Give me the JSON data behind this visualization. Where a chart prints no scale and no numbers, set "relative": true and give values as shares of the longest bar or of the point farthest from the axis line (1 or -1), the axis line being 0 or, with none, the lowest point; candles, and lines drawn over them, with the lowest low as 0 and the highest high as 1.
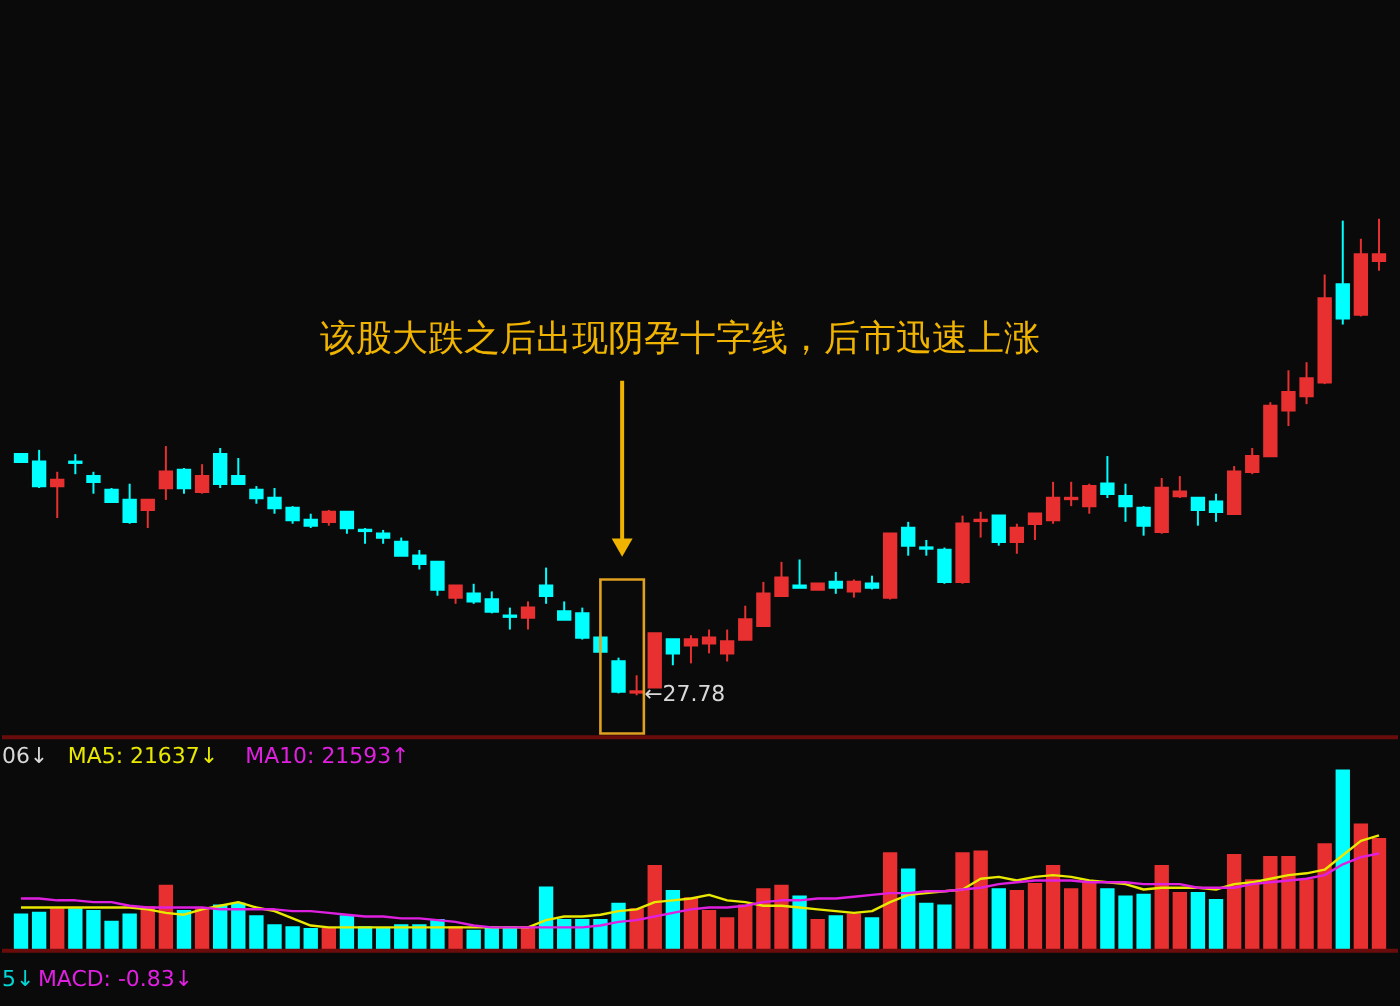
{
  "chart_data": [
    {
      "type": "candlestick",
      "relative": true,
      "categories": [
        null,
        null,
        null,
        null,
        null,
        null,
        null,
        null,
        null,
        null,
        null,
        null,
        null,
        null,
        null,
        null,
        null,
        null,
        null,
        null,
        null,
        null,
        null,
        null,
        null,
        null,
        null,
        null,
        null,
        null,
        null,
        null,
        null,
        null,
        null,
        null,
        null,
        null,
        null,
        null,
        null,
        null,
        null,
        null,
        null,
        null,
        null,
        null,
        null,
        null,
        null,
        null,
        null,
        null,
        null,
        null,
        null,
        null,
        null,
        null,
        null,
        null,
        null,
        null,
        null,
        null,
        null,
        null,
        null,
        null,
        null,
        null,
        null,
        null,
        null,
        null
      ],
      "ohlc": [
        [
          0.506,
          0.506,
          0.49,
          0.49
        ],
        [
          0.49,
          0.515,
          0.435,
          0.439
        ],
        [
          0.439,
          0.469,
          0.372,
          0.452
        ],
        [
          0.49,
          0.506,
          0.464,
          0.488
        ],
        [
          0.46,
          0.469,
          0.423,
          0.448
        ],
        [
          0.431,
          0.435,
          0.406,
          0.406
        ],
        [
          0.41,
          0.444,
          0.36,
          0.364
        ],
        [
          0.389,
          0.41,
          0.351,
          0.41
        ],
        [
          0.435,
          0.523,
          0.41,
          0.469
        ],
        [
          0.473,
          0.477,
          0.423,
          0.435
        ],
        [
          0.427,
          0.485,
          0.423,
          0.46
        ],
        [
          0.506,
          0.519,
          0.435,
          0.444
        ],
        [
          0.46,
          0.498,
          0.444,
          0.444
        ],
        [
          0.431,
          0.439,
          0.402,
          0.414
        ],
        [
          0.414,
          0.435,
          0.381,
          0.393
        ],
        [
          0.393,
          0.397,
          0.36,
          0.368
        ],
        [
          0.368,
          0.381,
          0.351,
          0.356
        ],
        [
          0.364,
          0.389,
          0.356,
          0.385
        ],
        [
          0.385,
          0.385,
          0.339,
          0.351
        ],
        [
          0.347,
          0.351,
          0.318,
          0.345
        ],
        [
          0.339,
          0.347,
          0.318,
          0.331
        ],
        [
          0.322,
          0.331,
          0.293,
          0.293
        ],
        [
          0.293,
          0.305,
          0.264,
          0.276
        ],
        [
          0.28,
          0.28,
          0.209,
          0.222
        ],
        [
          0.205,
          0.23,
          0.192,
          0.23
        ],
        [
          0.213,
          0.234,
          0.192,
          0.197
        ],
        [
          0.201,
          0.218,
          0.172,
          0.176
        ],
        [
          0.167,
          0.184,
          0.138,
          0.165
        ],
        [
          0.163,
          0.197,
          0.138,
          0.184
        ],
        [
          0.23,
          0.268,
          0.192,
          0.209
        ],
        [
          0.176,
          0.197,
          0.159,
          0.159
        ],
        [
          0.172,
          0.184,
          0.117,
          0.121
        ],
        [
          0.121,
          0.126,
          0.092,
          0.092
        ],
        [
          0.071,
          0.079,
          0.004,
          0.008
        ],
        [
          0.006,
          0.042,
          0,
          0.008
        ],
        [
          0.017,
          0.13,
          0.017,
          0.13
        ],
        [
          0.117,
          0.117,
          0.063,
          0.088
        ],
        [
          0.105,
          0.126,
          0.067,
          0.117
        ],
        [
          0.109,
          0.138,
          0.088,
          0.121
        ],
        [
          0.088,
          0.138,
          0.071,
          0.113
        ],
        [
          0.117,
          0.188,
          0.117,
          0.159
        ],
        [
          0.146,
          0.238,
          0.146,
          0.213
        ],
        [
          0.209,
          0.28,
          0.209,
          0.247
        ],
        [
          0.23,
          0.285,
          0.226,
          0.226
        ],
        [
          0.222,
          0.234,
          0.222,
          0.234
        ],
        [
          0.238,
          0.259,
          0.213,
          0.226
        ],
        [
          0.218,
          0.243,
          0.205,
          0.238
        ],
        [
          0.234,
          0.251,
          0.222,
          0.226
        ],
        [
          0.205,
          0.339,
          0.201,
          0.339
        ],
        [
          0.351,
          0.364,
          0.293,
          0.314
        ],
        [
          0.31,
          0.326,
          0.293,
          0.308
        ],
        [
          0.305,
          0.31,
          0.234,
          0.238
        ],
        [
          0.238,
          0.377,
          0.234,
          0.36
        ],
        [
          0.366,
          0.385,
          0.331,
          0.368
        ],
        [
          0.377,
          0.377,
          0.314,
          0.322
        ],
        [
          0.322,
          0.36,
          0.297,
          0.351
        ],
        [
          0.36,
          0.381,
          0.326,
          0.381
        ],
        [
          0.368,
          0.448,
          0.36,
          0.414
        ],
        [
          0.412,
          0.448,
          0.397,
          0.414
        ],
        [
          0.397,
          0.444,
          0.381,
          0.439
        ],
        [
          0.444,
          0.502,
          0.414,
          0.423
        ],
        [
          0.418,
          0.444,
          0.364,
          0.397
        ],
        [
          0.393,
          0.397,
          0.335,
          0.356
        ],
        [
          0.343,
          0.456,
          0.339,
          0.435
        ],
        [
          0.418,
          0.46,
          0.414,
          0.427
        ],
        [
          0.414,
          0.414,
          0.356,
          0.389
        ],
        [
          0.406,
          0.423,
          0.364,
          0.385
        ],
        [
          0.381,
          0.481,
          0.381,
          0.469
        ],
        [
          0.469,
          0.519,
          0.464,
          0.502
        ],
        [
          0.502,
          0.615,
          0.502,
          0.607
        ],
        [
          0.598,
          0.682,
          0.565,
          0.636
        ],
        [
          0.628,
          0.699,
          0.611,
          0.665
        ],
        [
          0.657,
          0.883,
          0.653,
          0.833
        ],
        [
          0.862,
          0.996,
          0.778,
          0.791
        ],
        [
          0.799,
          0.958,
          0.795,
          0.925
        ],
        [
          0.912,
          1,
          0.891,
          0.925
        ]
      ],
      "colors": [
        "#00ffff",
        "#00ffff",
        "#e83030",
        "#00ffff",
        "#00ffff",
        "#00ffff",
        "#00ffff",
        "#e83030",
        "#e83030",
        "#00ffff",
        "#e83030",
        "#00ffff",
        "#00ffff",
        "#00ffff",
        "#00ffff",
        "#00ffff",
        "#00ffff",
        "#e83030",
        "#00ffff",
        "#00ffff",
        "#00ffff",
        "#00ffff",
        "#00ffff",
        "#00ffff",
        "#e83030",
        "#00ffff",
        "#00ffff",
        "#00ffff",
        "#e83030",
        "#00ffff",
        "#00ffff",
        "#00ffff",
        "#00ffff",
        "#00ffff",
        "#e83030",
        "#e83030",
        "#00ffff",
        "#e83030",
        "#e83030",
        "#e83030",
        "#e83030",
        "#e83030",
        "#e83030",
        "#00ffff",
        "#e83030",
        "#00ffff",
        "#e83030",
        "#00ffff",
        "#e83030",
        "#00ffff",
        "#00ffff",
        "#00ffff",
        "#e83030",
        "#e83030",
        "#00ffff",
        "#e83030",
        "#e83030",
        "#e83030",
        "#e83030",
        "#e83030",
        "#00ffff",
        "#00ffff",
        "#00ffff",
        "#e83030",
        "#e83030",
        "#00ffff",
        "#00ffff",
        "#e83030",
        "#e83030",
        "#e83030",
        "#e83030",
        "#e83030",
        "#e83030",
        "#00ffff",
        "#e83030",
        "#e83030"
      ],
      "annotations": [
        "该股大跌之后出现阴孕十字线，后市迅速上涨",
        "←27.78"
      ]
    },
    {
      "type": "bar",
      "relative": true,
      "categories": [
        null,
        null,
        null,
        null,
        null,
        null,
        null,
        null,
        null,
        null,
        null,
        null,
        null,
        null,
        null,
        null,
        null,
        null,
        null,
        null,
        null,
        null,
        null,
        null,
        null,
        null,
        null,
        null,
        null,
        null,
        null,
        null,
        null,
        null,
        null,
        null,
        null,
        null,
        null,
        null,
        null,
        null,
        null,
        null,
        null,
        null,
        null,
        null,
        null,
        null,
        null,
        null,
        null,
        null,
        null,
        null,
        null,
        null,
        null,
        null,
        null,
        null,
        null,
        null,
        null,
        null,
        null,
        null,
        null,
        null,
        null,
        null,
        null,
        null,
        null,
        null
      ],
      "series": [
        {
          "type": "bar",
          "values": [
            0.2,
            0.21,
            0.23,
            0.23,
            0.22,
            0.16,
            0.2,
            0.24,
            0.36,
            0.22,
            0.23,
            0.25,
            0.26,
            0.19,
            0.14,
            0.13,
            0.12,
            0.12,
            0.19,
            0.13,
            0.12,
            0.14,
            0.14,
            0.17,
            0.13,
            0.11,
            0.13,
            0.13,
            0.13,
            0.35,
            0.17,
            0.17,
            0.17,
            0.26,
            0.23,
            0.47,
            0.33,
            0.29,
            0.22,
            0.18,
            0.25,
            0.34,
            0.36,
            0.3,
            0.17,
            0.19,
            0.2,
            0.18,
            0.54,
            0.45,
            0.26,
            0.25,
            0.54,
            0.55,
            0.34,
            0.33,
            0.37,
            0.47,
            0.34,
            0.38,
            0.34,
            0.3,
            0.31,
            0.47,
            0.32,
            0.32,
            0.28,
            0.53,
            0.39,
            0.52,
            0.52,
            0.39,
            0.59,
            1,
            0.7,
            0.62
          ],
          "colors": [
            "#00ffff",
            "#00ffff",
            "#e83030",
            "#00ffff",
            "#00ffff",
            "#00ffff",
            "#00ffff",
            "#e83030",
            "#e83030",
            "#00ffff",
            "#e83030",
            "#00ffff",
            "#00ffff",
            "#00ffff",
            "#00ffff",
            "#00ffff",
            "#00ffff",
            "#e83030",
            "#00ffff",
            "#00ffff",
            "#00ffff",
            "#00ffff",
            "#00ffff",
            "#00ffff",
            "#e83030",
            "#00ffff",
            "#00ffff",
            "#00ffff",
            "#e83030",
            "#00ffff",
            "#00ffff",
            "#00ffff",
            "#00ffff",
            "#00ffff",
            "#e83030",
            "#e83030",
            "#00ffff",
            "#e83030",
            "#e83030",
            "#e83030",
            "#e83030",
            "#e83030",
            "#e83030",
            "#00ffff",
            "#e83030",
            "#00ffff",
            "#e83030",
            "#00ffff",
            "#e83030",
            "#00ffff",
            "#00ffff",
            "#00ffff",
            "#e83030",
            "#e83030",
            "#00ffff",
            "#e83030",
            "#e83030",
            "#e83030",
            "#e83030",
            "#e83030",
            "#00ffff",
            "#00ffff",
            "#00ffff",
            "#e83030",
            "#e83030",
            "#00ffff",
            "#00ffff",
            "#e83030",
            "#e83030",
            "#e83030",
            "#e83030",
            "#e83030",
            "#e83030",
            "#00ffff",
            "#e83030",
            "#e83030"
          ]
        },
        {
          "name": "MA5: 21637↓",
          "type": "line",
          "color": "#e8e800",
          "values": [
            0.24,
            0.24,
            0.24,
            0.24,
            0.24,
            0.24,
            0.24,
            0.23,
            0.21,
            0.2,
            0.23,
            0.25,
            0.27,
            0.24,
            0.22,
            0.18,
            0.14,
            0.13,
            0.13,
            0.13,
            0.13,
            0.13,
            0.13,
            0.13,
            0.13,
            0.13,
            0.13,
            0.13,
            0.13,
            0.17,
            0.19,
            0.19,
            0.2,
            0.22,
            0.23,
            0.27,
            0.28,
            0.29,
            0.31,
            0.28,
            0.27,
            0.25,
            0.25,
            0.24,
            0.23,
            0.22,
            0.21,
            0.22,
            0.27,
            0.31,
            0.32,
            0.33,
            0.34,
            0.4,
            0.41,
            0.39,
            0.41,
            0.42,
            0.41,
            0.39,
            0.38,
            0.37,
            0.34,
            0.35,
            0.35,
            0.35,
            0.34,
            0.37,
            0.38,
            0.4,
            0.42,
            0.43,
            0.45,
            0.53,
            0.61,
            0.64
          ]
        },
        {
          "name": "MA10: 21593↑",
          "type": "line",
          "color": "#e020e0",
          "values": [
            0.29,
            0.29,
            0.28,
            0.28,
            0.27,
            0.27,
            0.25,
            0.24,
            0.24,
            0.24,
            0.24,
            0.23,
            0.23,
            0.23,
            0.23,
            0.22,
            0.22,
            0.21,
            0.2,
            0.19,
            0.19,
            0.18,
            0.18,
            0.17,
            0.16,
            0.14,
            0.13,
            0.13,
            0.13,
            0.13,
            0.13,
            0.13,
            0.14,
            0.16,
            0.17,
            0.19,
            0.21,
            0.23,
            0.24,
            0.24,
            0.25,
            0.27,
            0.28,
            0.28,
            0.29,
            0.29,
            0.3,
            0.31,
            0.32,
            0.32,
            0.33,
            0.33,
            0.34,
            0.35,
            0.37,
            0.38,
            0.39,
            0.39,
            0.39,
            0.38,
            0.38,
            0.38,
            0.37,
            0.37,
            0.37,
            0.35,
            0.35,
            0.35,
            0.37,
            0.38,
            0.39,
            0.4,
            0.42,
            0.48,
            0.52,
            0.54
          ]
        }
      ],
      "annotations": [
        "06↓"
      ]
    },
    {
      "type": "other",
      "annotations": [
        "5↓",
        "MACD: -0.83↓"
      ]
    }
  ]
}
